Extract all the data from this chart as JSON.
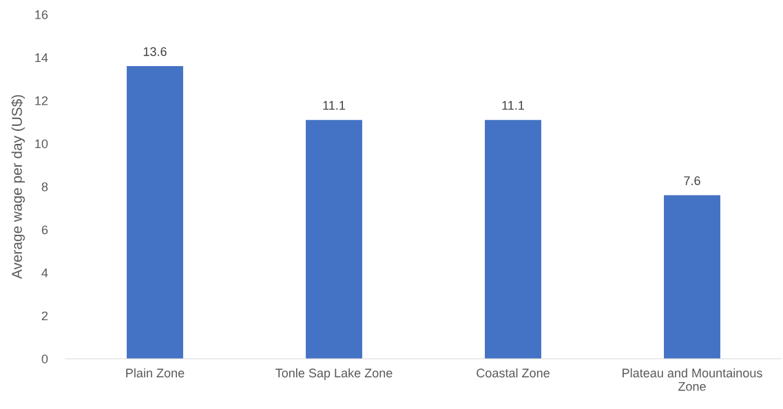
{
  "chart_data": {
    "type": "bar",
    "ylabel": "Average wage per day (US$)",
    "categories": [
      "Plain Zone",
      "Tonle Sap Lake Zone",
      "Coastal Zone",
      "Plateau and Mountainous Zone"
    ],
    "values": [
      13.6,
      11.1,
      11.1,
      7.6
    ],
    "color": "#4472c4",
    "ylim": [
      0,
      16
    ],
    "yticks": [
      0,
      2,
      4,
      6,
      8,
      10,
      12,
      14,
      16
    ],
    "grid": false,
    "legend": false,
    "data_labels": true
  }
}
